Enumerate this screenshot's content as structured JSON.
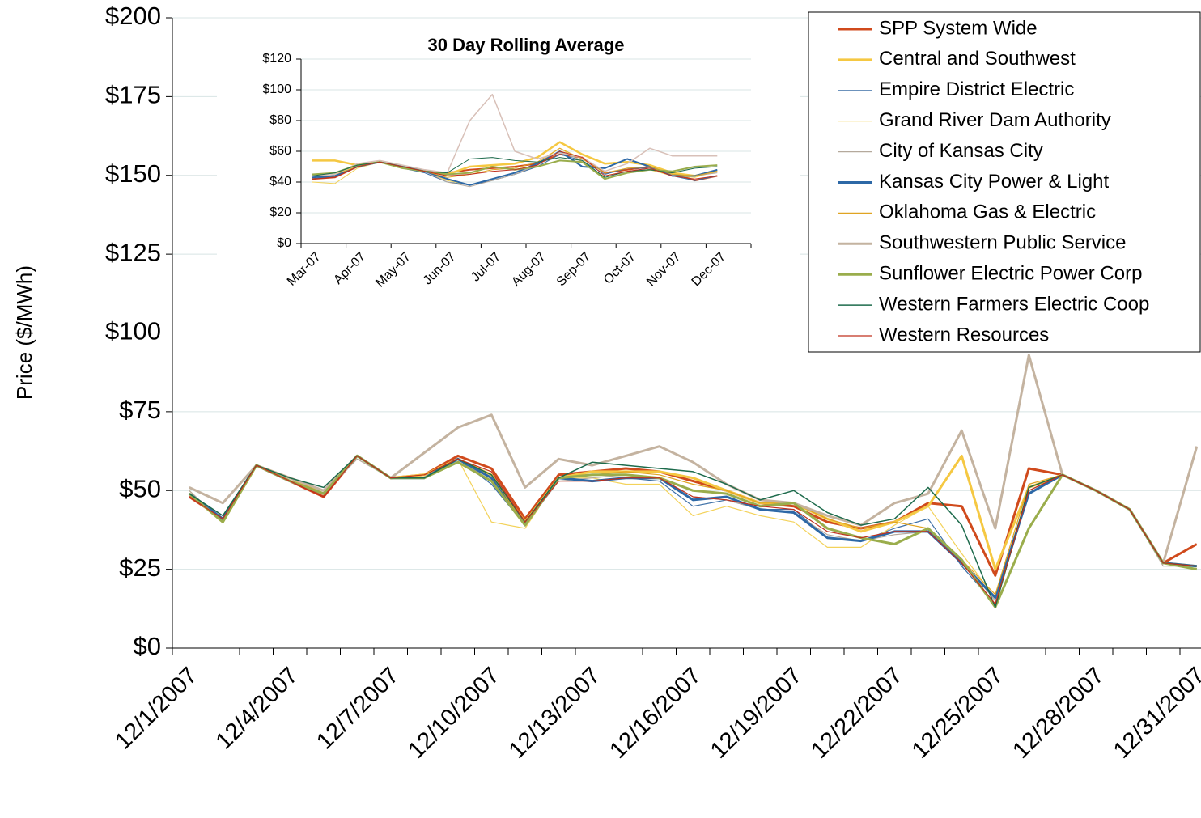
{
  "chart_data": [
    {
      "type": "line",
      "y_label": "Price ($/MWh)",
      "categories": [
        "12/1/2007",
        null,
        null,
        "12/4/2007",
        null,
        null,
        "12/7/2007",
        null,
        null,
        "12/10/2007",
        null,
        null,
        "12/13/2007",
        null,
        null,
        "12/16/2007",
        null,
        null,
        "12/19/2007",
        null,
        null,
        "12/22/2007",
        null,
        null,
        "12/25/2007",
        null,
        null,
        "12/28/2007",
        null,
        null,
        "12/31/2007"
      ],
      "ylim": [
        0,
        200
      ],
      "yticks": [
        {
          "value": 0,
          "label": "$0"
        },
        {
          "value": 25,
          "label": "$25"
        },
        {
          "value": 50,
          "label": "$50"
        },
        {
          "value": 75,
          "label": "$75"
        },
        {
          "value": 100,
          "label": "$100"
        },
        {
          "value": 125,
          "label": "$125"
        },
        {
          "value": 150,
          "label": "$150"
        },
        {
          "value": 175,
          "label": "$175"
        },
        {
          "value": 200,
          "label": "$200"
        }
      ],
      "grid": true,
      "legend": "upper right",
      "series": [
        {
          "name": "SPP System Wide",
          "color": "#d04a1c",
          "line_width": 3,
          "values": [
            48,
            41,
            58,
            53,
            48,
            61,
            54,
            55,
            61,
            57,
            41,
            55,
            56,
            57,
            56,
            53,
            50,
            46,
            45,
            40,
            38,
            40,
            46,
            45,
            23,
            57,
            55,
            50,
            44,
            27,
            33
          ]
        },
        {
          "name": "Central and Southwest",
          "color": "#f5c842",
          "line_width": 3,
          "values": [
            49,
            40,
            58,
            54,
            49,
            61,
            54,
            55,
            60,
            55,
            40,
            54,
            56,
            56,
            56,
            54,
            50,
            46,
            46,
            41,
            37,
            40,
            45,
            61,
            25,
            51,
            55,
            50,
            44,
            27,
            26
          ]
        },
        {
          "name": "Empire District Electric",
          "color": "#3b6ea5",
          "line_width": 1.2,
          "values": [
            49,
            42,
            58,
            53,
            49,
            61,
            54,
            54,
            60,
            52,
            39,
            54,
            53,
            54,
            53,
            45,
            47,
            44,
            44,
            35,
            34,
            38,
            41,
            26,
            14,
            49,
            55,
            50,
            44,
            27,
            26
          ]
        },
        {
          "name": "Grand River Dam Authority",
          "color": "#f3d25a",
          "line_width": 1.2,
          "values": [
            50,
            40,
            58,
            53,
            49,
            61,
            54,
            55,
            60,
            40,
            38,
            54,
            54,
            52,
            52,
            42,
            45,
            42,
            40,
            32,
            32,
            39,
            45,
            30,
            16,
            50,
            55,
            50,
            44,
            27,
            26
          ]
        },
        {
          "name": "City of Kansas City",
          "color": "#b5a99c",
          "line_width": 1.2,
          "values": [
            50,
            40,
            58,
            53,
            49,
            60,
            54,
            54,
            59,
            54,
            39,
            53,
            54,
            55,
            54,
            48,
            47,
            44,
            43,
            36,
            34,
            36,
            37,
            28,
            15,
            50,
            55,
            50,
            44,
            26,
            26
          ]
        },
        {
          "name": "Kansas City Power & Light",
          "color": "#2d68a6",
          "line_width": 3,
          "values": [
            49,
            41,
            58,
            53,
            49,
            61,
            54,
            54,
            60,
            54,
            39,
            54,
            53,
            54,
            54,
            47,
            48,
            44,
            43,
            35,
            34,
            37,
            37,
            27,
            16,
            49,
            55,
            50,
            44,
            27,
            26
          ]
        },
        {
          "name": "Oklahoma Gas & Electric",
          "color": "#e0a422",
          "line_width": 1.2,
          "values": [
            49,
            40,
            58,
            53,
            50,
            61,
            54,
            55,
            60,
            55,
            39,
            54,
            55,
            56,
            55,
            52,
            50,
            46,
            46,
            41,
            38,
            40,
            38,
            28,
            17,
            52,
            55,
            50,
            44,
            27,
            26
          ]
        },
        {
          "name": "Southwestern Public Service",
          "color": "#c4b3a0",
          "line_width": 3,
          "values": [
            51,
            46,
            58,
            54,
            50,
            61,
            54,
            62,
            70,
            74,
            51,
            60,
            58,
            61,
            64,
            59,
            52,
            47,
            46,
            42,
            39,
            46,
            49,
            69,
            38,
            93,
            55,
            50,
            44,
            27,
            64
          ]
        },
        {
          "name": "Sunflower Electric Power Corp",
          "color": "#9aad4c",
          "line_width": 3,
          "values": [
            49,
            40,
            58,
            53,
            49,
            61,
            54,
            54,
            59,
            53,
            39,
            54,
            55,
            55,
            54,
            50,
            49,
            45,
            46,
            38,
            35,
            33,
            38,
            28,
            13,
            38,
            55,
            50,
            44,
            27,
            25
          ]
        },
        {
          "name": "Western Farmers Electric Coop",
          "color": "#1d6b4c",
          "line_width": 1.5,
          "values": [
            49,
            42,
            58,
            54,
            51,
            61,
            54,
            54,
            60,
            55,
            40,
            54,
            59,
            58,
            57,
            56,
            52,
            47,
            50,
            43,
            39,
            41,
            51,
            39,
            13,
            51,
            55,
            50,
            44,
            27,
            26
          ]
        },
        {
          "name": "Western Resources",
          "color": "#c0301e",
          "line_width": 1.2,
          "values": [
            48,
            41,
            58,
            53,
            48,
            61,
            54,
            55,
            60,
            56,
            40,
            53,
            53,
            54,
            54,
            48,
            47,
            45,
            44,
            37,
            35,
            37,
            37,
            27,
            14,
            50,
            55,
            50,
            44,
            27,
            26
          ]
        }
      ]
    },
    {
      "type": "line",
      "title": "30 Day Rolling Average",
      "categories": [
        "Mar-07",
        null,
        "Apr-07",
        null,
        "May-07",
        null,
        "Jun-07",
        null,
        "Jul-07",
        null,
        "Aug-07",
        null,
        "Sep-07",
        null,
        "Oct-07",
        null,
        "Nov-07",
        null,
        "Dec-07",
        null
      ],
      "ylim": [
        0,
        120
      ],
      "yticks": [
        {
          "value": 0,
          "label": "$0"
        },
        {
          "value": 20,
          "label": "$20"
        },
        {
          "value": 40,
          "label": "$40"
        },
        {
          "value": 60,
          "label": "$60"
        },
        {
          "value": 80,
          "label": "$80"
        },
        {
          "value": 100,
          "label": "$100"
        },
        {
          "value": 120,
          "label": "$120"
        }
      ],
      "grid": true,
      "series": [
        {
          "color": "#d04a1c",
          "line_width": 2,
          "values": [
            42,
            43,
            50,
            53,
            50,
            47,
            46,
            48,
            49,
            50,
            52,
            58,
            56,
            46,
            48,
            50,
            46,
            41,
            44,
            null
          ]
        },
        {
          "color": "#f5c842",
          "line_width": 2.5,
          "values": [
            54,
            54,
            51,
            53,
            50,
            47,
            45,
            50,
            51,
            52,
            56,
            66,
            58,
            52,
            53,
            51,
            46,
            44,
            47,
            null
          ]
        },
        {
          "color": "#3b6ea5",
          "line_width": 1,
          "values": [
            42,
            44,
            50,
            53,
            49,
            46,
            40,
            38,
            41,
            45,
            50,
            58,
            54,
            45,
            49,
            49,
            44,
            41,
            44,
            null
          ]
        },
        {
          "color": "#f3d25a",
          "line_width": 1,
          "values": [
            40,
            39,
            49,
            53,
            50,
            47,
            41,
            38,
            42,
            46,
            52,
            62,
            53,
            42,
            46,
            48,
            44,
            43,
            47,
            null
          ]
        },
        {
          "color": "#b5a99c",
          "line_width": 1,
          "values": [
            43,
            44,
            50,
            53,
            50,
            47,
            40,
            37,
            41,
            45,
            51,
            60,
            54,
            43,
            47,
            49,
            45,
            44,
            46,
            null
          ]
        },
        {
          "color": "#2d68a6",
          "line_width": 2,
          "values": [
            43,
            44,
            50,
            53,
            50,
            47,
            42,
            38,
            42,
            46,
            52,
            60,
            50,
            49,
            55,
            50,
            44,
            44,
            48,
            null
          ]
        },
        {
          "color": "#e0a422",
          "line_width": 1,
          "values": [
            44,
            45,
            50,
            53,
            50,
            47,
            43,
            45,
            48,
            49,
            53,
            62,
            55,
            46,
            49,
            50,
            45,
            44,
            47,
            null
          ]
        },
        {
          "color": "#d8c0b8",
          "line_width": 1.5,
          "values": [
            44,
            45,
            52,
            54,
            51,
            48,
            46,
            80,
            97,
            60,
            55,
            59,
            56,
            47,
            52,
            62,
            57,
            57,
            57,
            null
          ]
        },
        {
          "color": "#9aad4c",
          "line_width": 2,
          "values": [
            45,
            46,
            51,
            53,
            49,
            47,
            45,
            46,
            50,
            48,
            50,
            54,
            53,
            42,
            46,
            48,
            47,
            50,
            51,
            null
          ]
        },
        {
          "color": "#1d6b4c",
          "line_width": 1,
          "values": [
            44,
            46,
            51,
            53,
            50,
            47,
            46,
            55,
            56,
            54,
            53,
            56,
            54,
            43,
            47,
            48,
            46,
            49,
            50,
            null
          ]
        },
        {
          "color": "#c0301e",
          "line_width": 1,
          "values": [
            42,
            43,
            50,
            53,
            50,
            47,
            44,
            45,
            47,
            48,
            51,
            60,
            56,
            44,
            47,
            49,
            44,
            42,
            44,
            null
          ]
        }
      ]
    }
  ]
}
